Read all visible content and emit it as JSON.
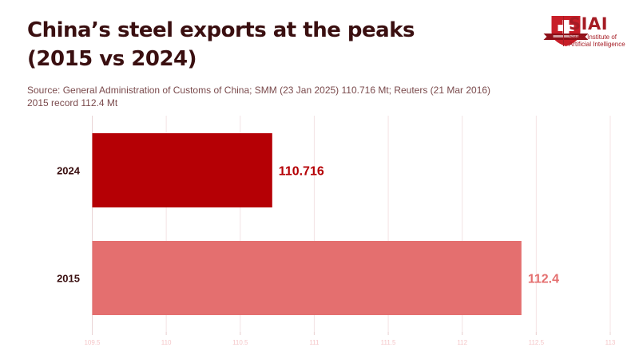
{
  "header": {
    "title_line1": "China’s steel exports at the peaks",
    "title_line2": "(2015 vs 2024)",
    "subtitle_line1": "Source: General Administration of Customs of China; SMM (23 Jan 2025) 110.716 Mt; Reuters (21 Mar 2016)",
    "subtitle_line2": "2015 record 112.4 Mt"
  },
  "logo": {
    "name": "SIAI",
    "sub_line1": "Swiss Institute of",
    "sub_line2": "Artificial Intelligence",
    "icon": "swiss-cross-shield-icon"
  },
  "chart_data": {
    "type": "bar",
    "orientation": "horizontal",
    "title": "China’s steel exports at the peaks (2015 vs 2024)",
    "xlabel": "",
    "ylabel": "",
    "categories": [
      "2024",
      "2015"
    ],
    "values": [
      110.716,
      112.4
    ],
    "value_labels": [
      "110.716",
      "112.4"
    ],
    "colors": [
      "#b50005",
      "#e46f6f"
    ],
    "xlim": [
      109.5,
      113
    ],
    "x_ticks": [
      109.5,
      110,
      110.5,
      111,
      111.5,
      112,
      112.5,
      113
    ],
    "x_tick_labels": [
      "109.5",
      "110",
      "110.5",
      "111",
      "111.5",
      "112",
      "112.5",
      "113"
    ],
    "grid": true,
    "grid_color": "#f4e3e4"
  }
}
